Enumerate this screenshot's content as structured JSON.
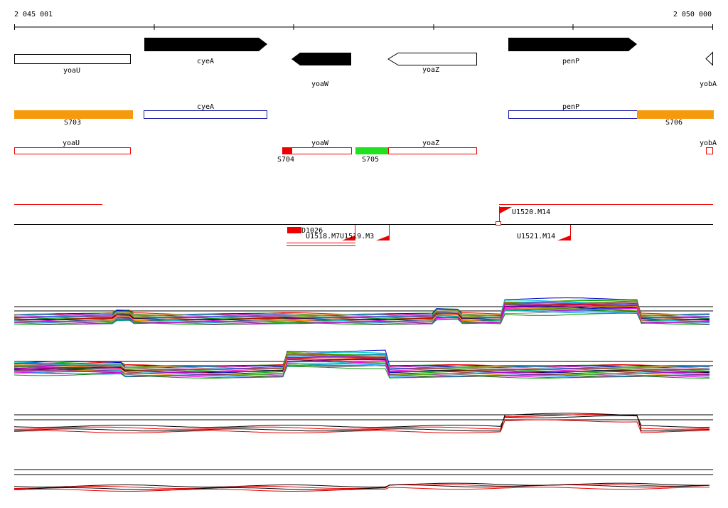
{
  "axis": {
    "start_label": "2 045 001",
    "end_label": "2 050 000"
  },
  "genes": [
    {
      "label": "yoaU"
    },
    {
      "label": "cyeA"
    },
    {
      "label": "yoaW"
    },
    {
      "label": "yoaZ"
    },
    {
      "label": "penP"
    },
    {
      "label": "yobA"
    }
  ],
  "operons": [
    {
      "label": "S703"
    },
    {
      "label": "cyeA"
    },
    {
      "label": "penP"
    },
    {
      "label": "S706"
    }
  ],
  "transcripts": [
    {
      "label": "yoaU"
    },
    {
      "label": "yoaW"
    },
    {
      "label": "yoaZ"
    },
    {
      "label": "yobA"
    },
    {
      "label": "S704"
    },
    {
      "label": "S705"
    }
  ],
  "probes": [
    {
      "label": "D1026"
    },
    {
      "label": "U1518.M7"
    },
    {
      "label": "U1519.M3"
    },
    {
      "label": "U1520.M14"
    },
    {
      "label": "U1521.M14"
    }
  ]
}
